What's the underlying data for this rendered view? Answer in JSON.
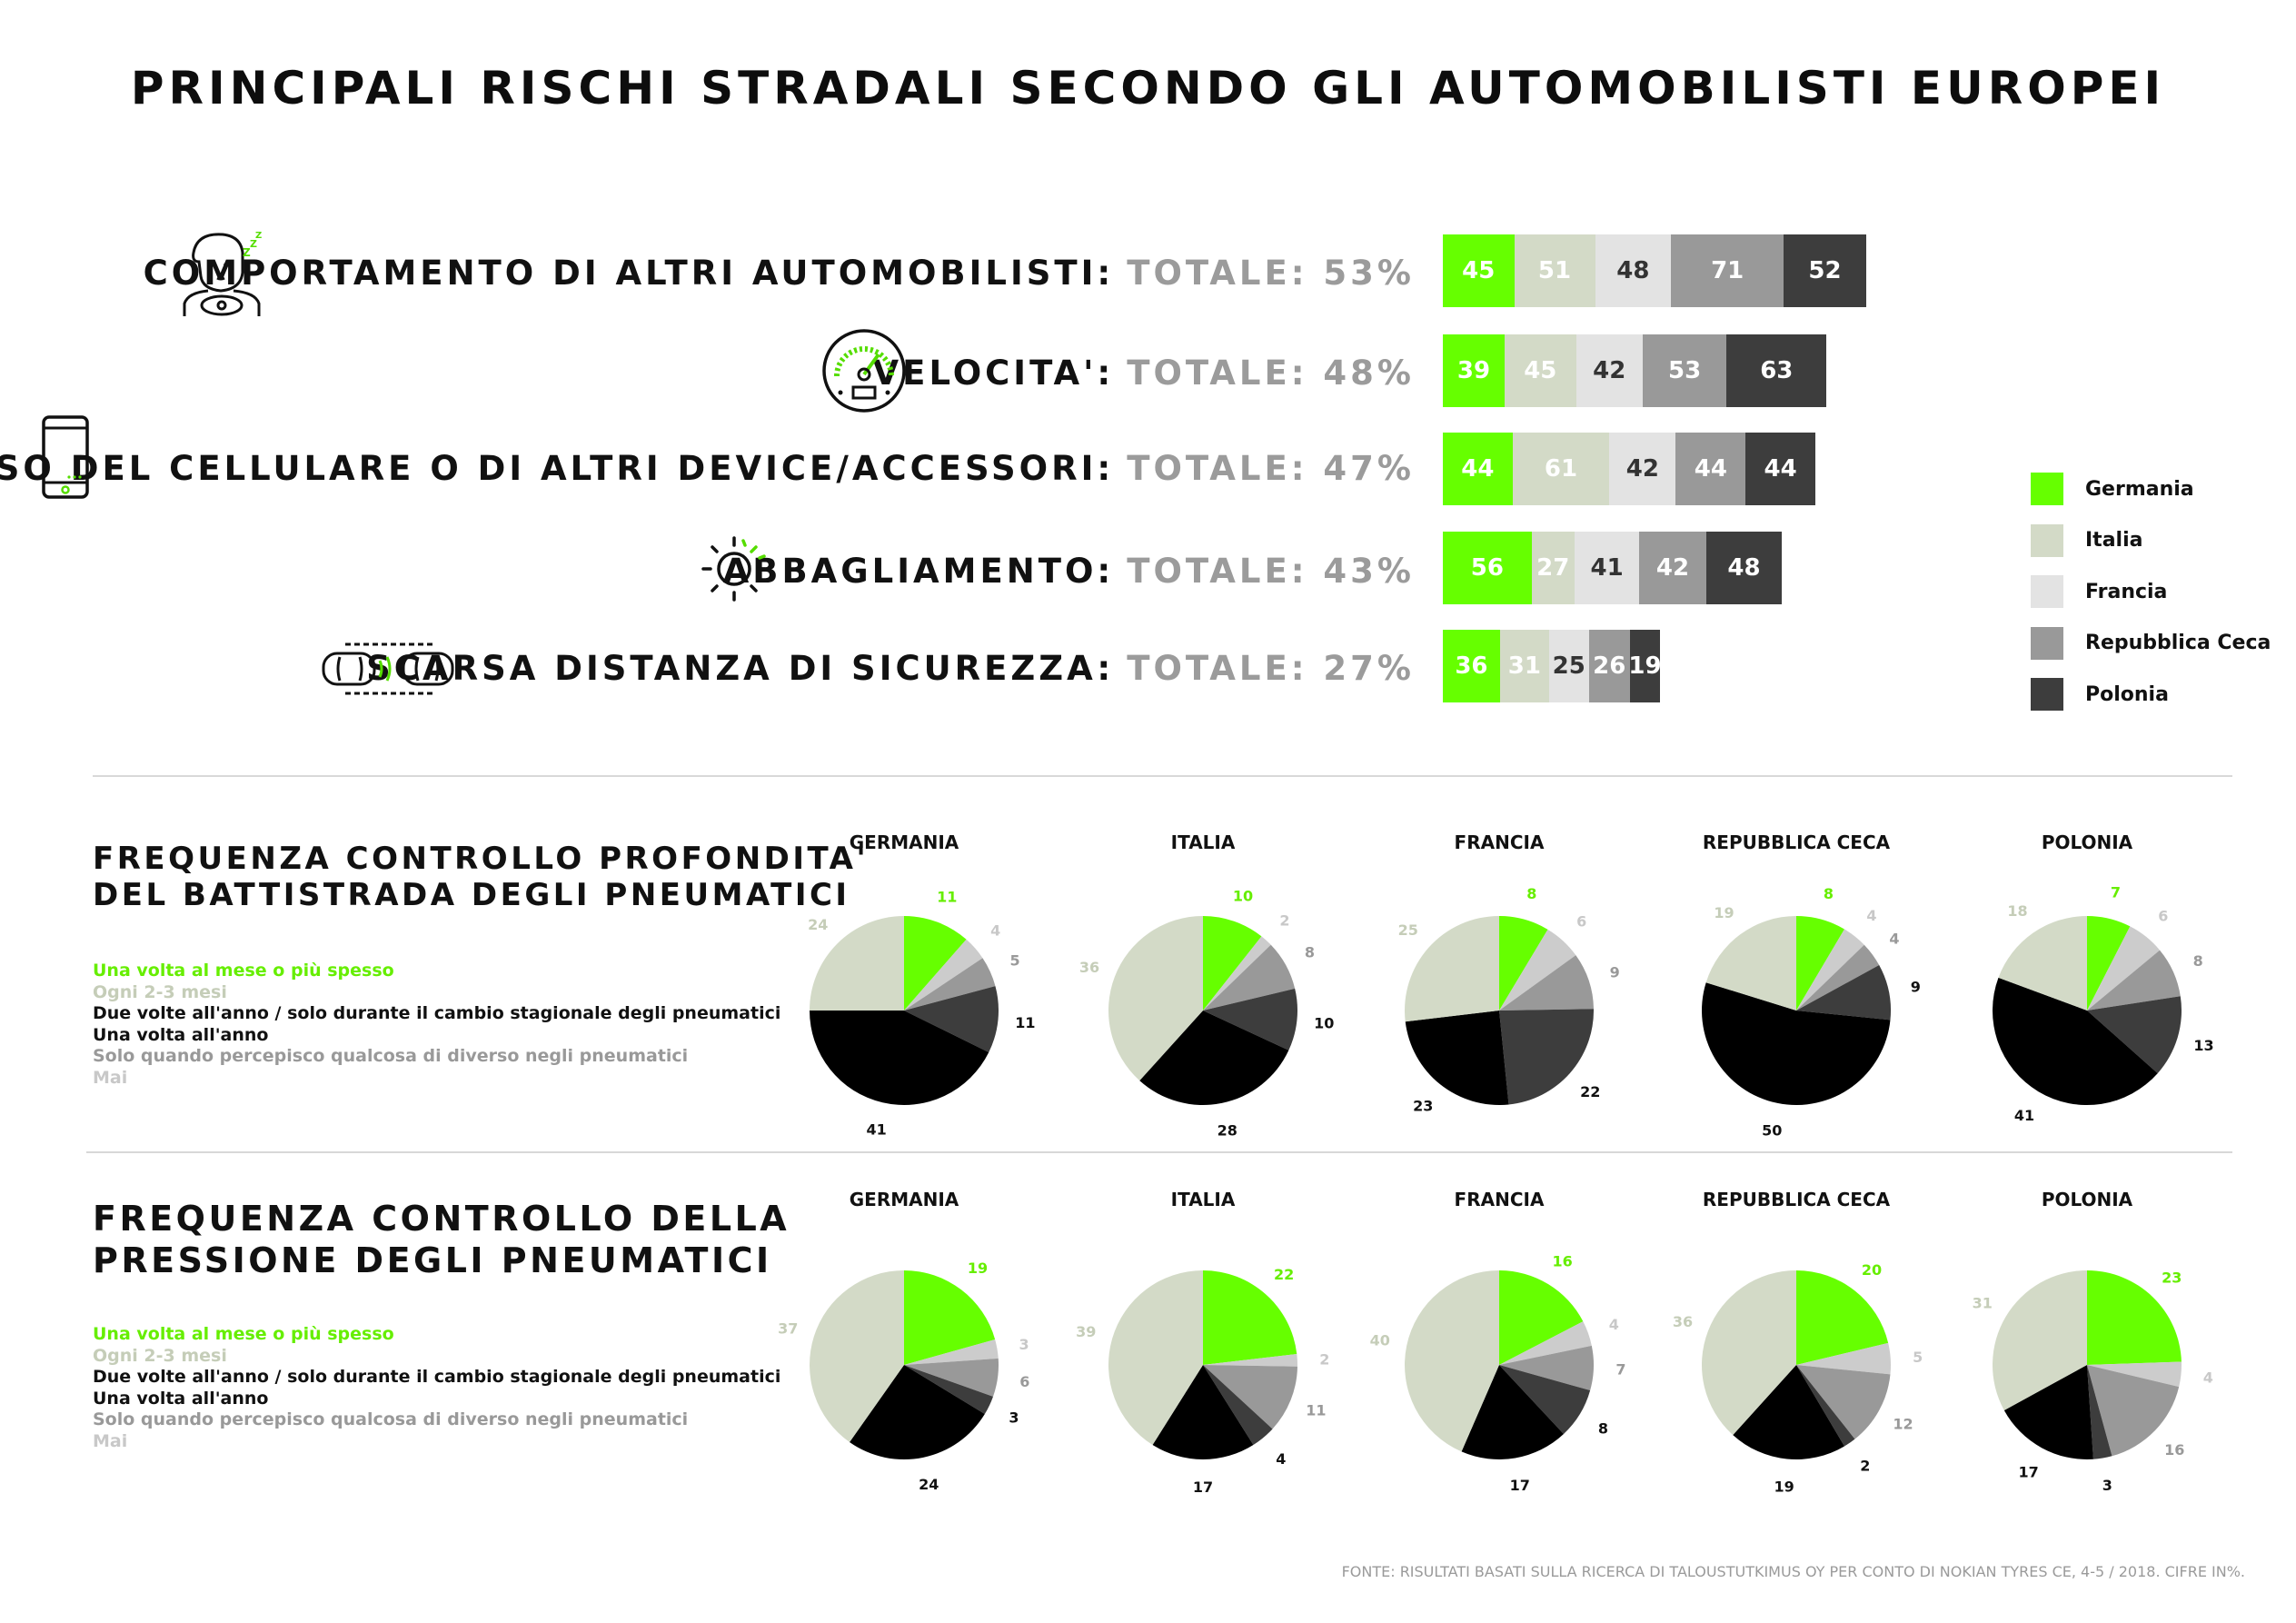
{
  "title": "PRINCIPALI RISCHI STRADALI SECONDO GLI AUTOMOBILISTI EUROPEI",
  "colors": {
    "Germania": "#66ff00",
    "Italia": "#d3dac7",
    "Francia": "#e3e3e3",
    "Repubblica Ceca": "#999999",
    "Polonia": "#3d3d3d",
    "freq": [
      "#66ff00",
      "#d3dac7",
      "#000000",
      "#3d3d3d",
      "#999999",
      "#cccccc"
    ],
    "freq_text": [
      "#66ee00",
      "#c5cdb8",
      "#111111",
      "#111111",
      "#999999",
      "#c8c8c8"
    ]
  },
  "icons": [
    "sleepy-driver-icon",
    "speedometer-icon",
    "smartphone-icon",
    "sun-glare-icon",
    "cars-distance-icon"
  ],
  "legend_title": "",
  "chart_data": [
    {
      "type": "bar",
      "orientation": "horizontal-stacked",
      "categories": [
        "COMPORTAMENTO DI ALTRI AUTOMOBILISTI:",
        "VELOCITA':",
        "USO DEL CELLULARE O DI ALTRI DEVICE/ACCESSORI:",
        "ABBAGLIAMENTO:",
        "SCARSA DISTANZA DI SICUREZZA:"
      ],
      "totals": [
        "TOTALE: 53%",
        "TOTALE: 48%",
        "TOTALE: 47%",
        "TOTALE: 43%",
        "TOTALE: 27%"
      ],
      "series": [
        {
          "name": "Germania",
          "values": [
            45,
            39,
            44,
            56,
            36
          ]
        },
        {
          "name": "Italia",
          "values": [
            51,
            45,
            61,
            27,
            31
          ]
        },
        {
          "name": "Francia",
          "values": [
            48,
            42,
            42,
            41,
            25
          ]
        },
        {
          "name": "Repubblica Ceca",
          "values": [
            71,
            53,
            44,
            42,
            26
          ]
        },
        {
          "name": "Polonia",
          "values": [
            52,
            63,
            44,
            48,
            19
          ]
        }
      ],
      "legend_position": "right"
    },
    {
      "type": "pie",
      "title": "FREQUENZA CONTROLLO PROFONDITA' DEL BATTISTRADA DEGLI PNEUMATICI",
      "title_lines": [
        "FREQUENZA CONTROLLO PROFONDITA'",
        "DEL BATTISTRADA DEGLI PNEUMATICI"
      ],
      "categories": [
        "Una volta al mese o più spesso",
        "Ogni 2-3 mesi",
        "Due volte all'anno / solo durante il cambio stagionale degli pneumatici",
        "Una volta all'anno",
        "Solo quando percepisco qualcosa di diverso negli pneumatici",
        "Mai"
      ],
      "pies": [
        {
          "name": "GERMANIA",
          "values": [
            11,
            24,
            41,
            11,
            5,
            4
          ]
        },
        {
          "name": "ITALIA",
          "values": [
            10,
            36,
            28,
            10,
            8,
            2
          ]
        },
        {
          "name": "FRANCIA",
          "values": [
            8,
            25,
            23,
            22,
            9,
            6
          ]
        },
        {
          "name": "REPUBBLICA CECA",
          "values": [
            8,
            19,
            50,
            9,
            4,
            4
          ]
        },
        {
          "name": "POLONIA",
          "values": [
            7,
            18,
            41,
            13,
            8,
            6
          ]
        }
      ]
    },
    {
      "type": "pie",
      "title": "FREQUENZA CONTROLLO DELLA PRESSIONE DEGLI PNEUMATICI",
      "title_lines": [
        "FREQUENZA CONTROLLO DELLA",
        "PRESSIONE DEGLI PNEUMATICI"
      ],
      "categories": [
        "Una volta al mese o più spesso",
        "Ogni 2-3 mesi",
        "Due volte all'anno / solo durante il cambio stagionale degli pneumatici",
        "Una volta all'anno",
        "Solo quando percepisco qualcosa di diverso negli pneumatici",
        "Mai"
      ],
      "pies": [
        {
          "name": "GERMANIA",
          "values": [
            19,
            37,
            24,
            3,
            6,
            3
          ]
        },
        {
          "name": "ITALIA",
          "values": [
            22,
            39,
            17,
            4,
            11,
            2
          ]
        },
        {
          "name": "FRANCIA",
          "values": [
            16,
            40,
            17,
            8,
            7,
            4
          ]
        },
        {
          "name": "REPUBBLICA CECA",
          "values": [
            20,
            36,
            19,
            2,
            12,
            5
          ]
        },
        {
          "name": "POLONIA",
          "values": [
            23,
            31,
            17,
            3,
            16,
            4
          ]
        }
      ]
    }
  ],
  "source": "FONTE: RISULTATI BASATI SULLA RICERCA DI TALOUSTUTKIMUS OY PER CONTO DI NOKIAN TYRES CE, 4-5 / 2018. CIFRE IN%."
}
